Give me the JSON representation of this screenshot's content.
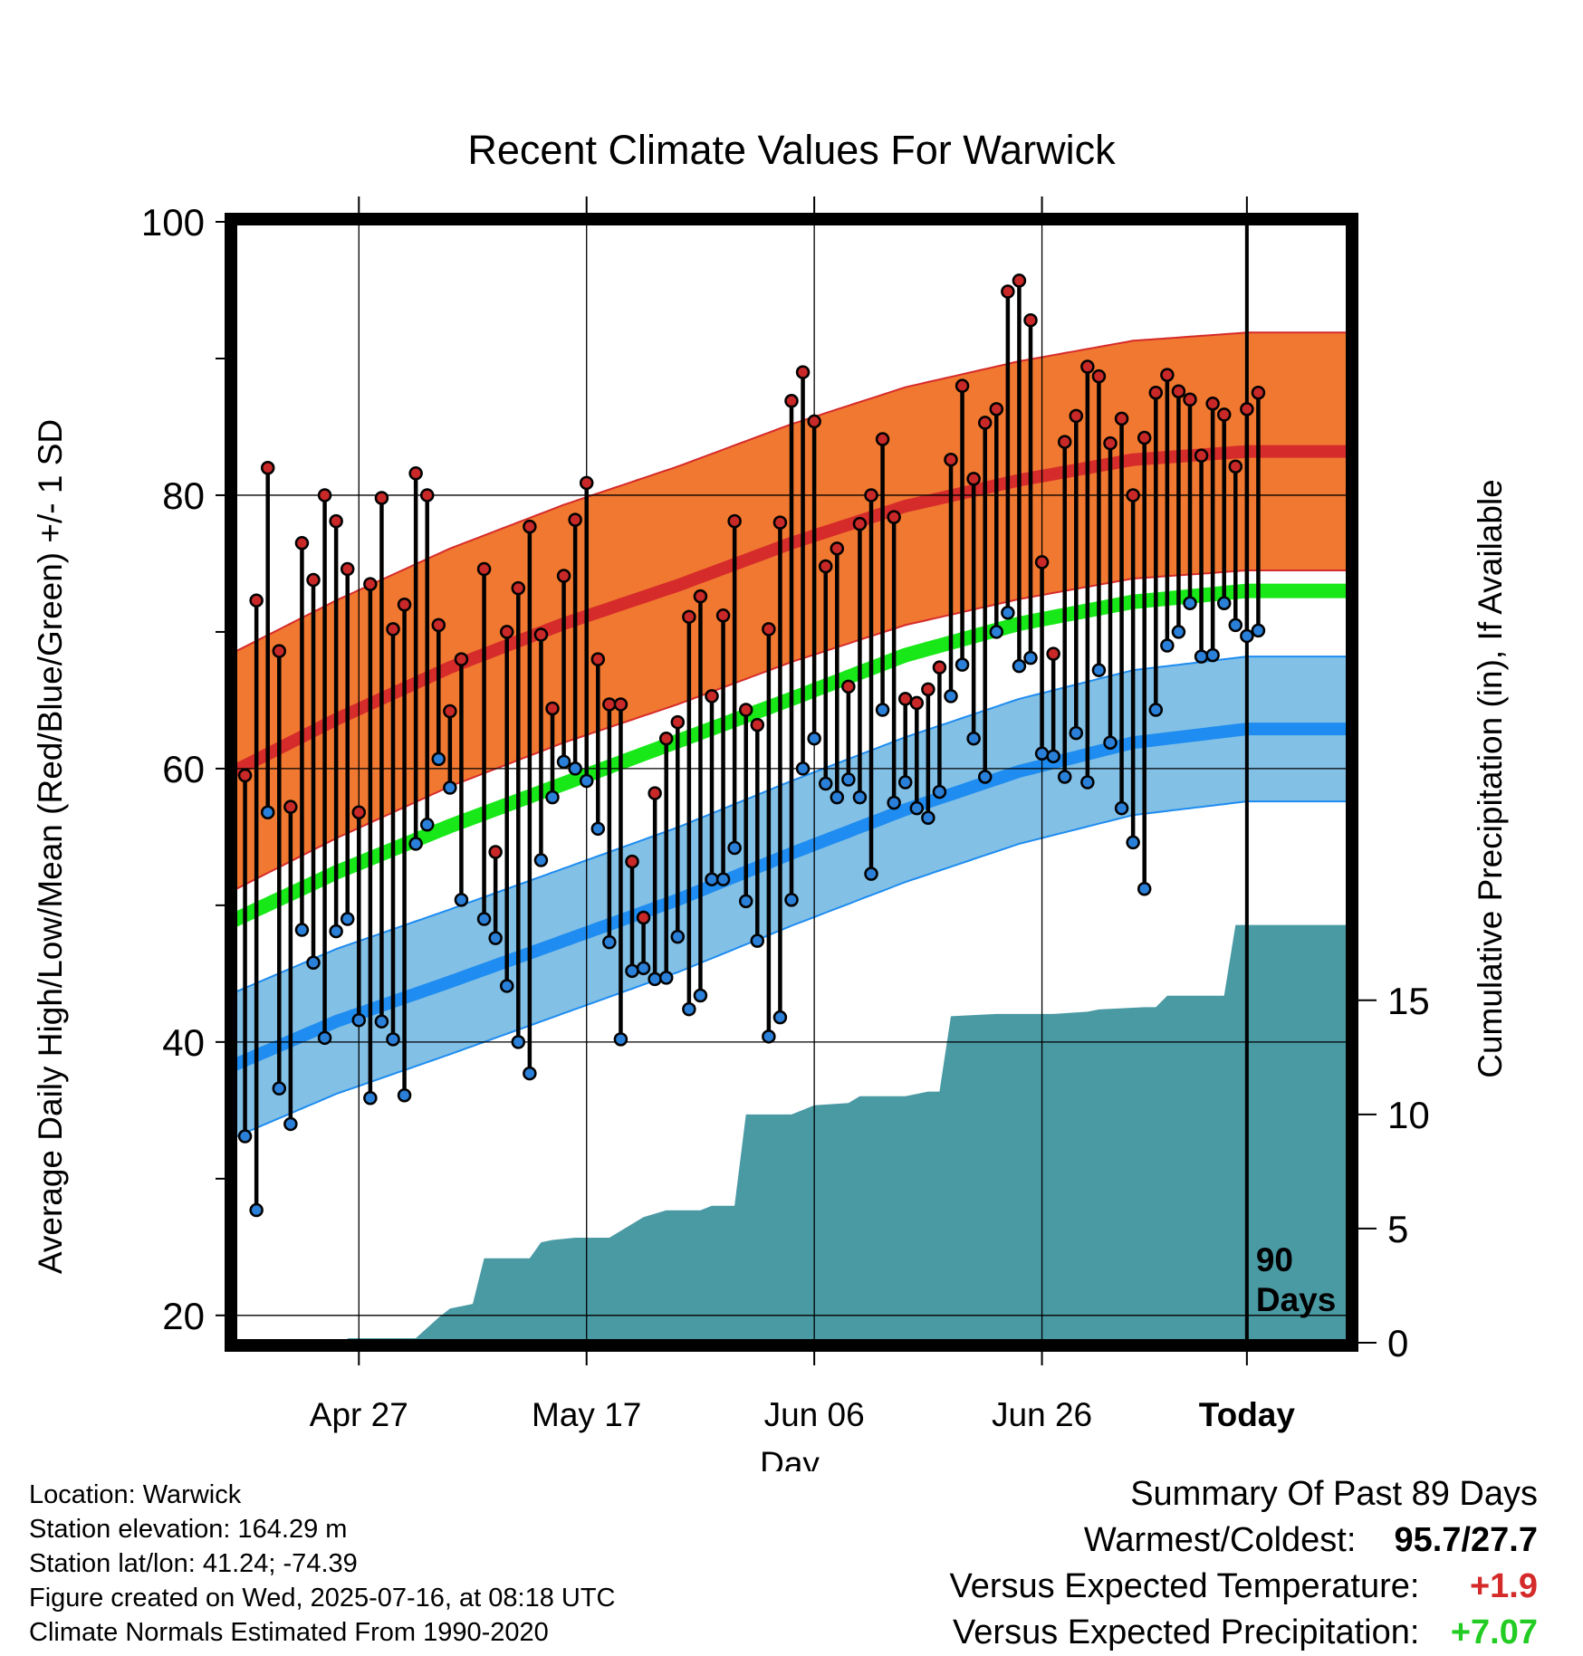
{
  "colors": {
    "high_band": "#f07830",
    "high_mean": "#d62b2b",
    "low_band": "#82c0e6",
    "low_mean": "#1e8cf0",
    "mean": "#18e818",
    "precip": "#4a9aa4",
    "high_dot": "#c82828",
    "low_dot": "#2a80d8",
    "warm_value": "#d42a2a",
    "precip_value": "#22cc22"
  },
  "chart_data": {
    "type": "line",
    "title": "Recent Climate Values For Warwick",
    "xlabel": "Day",
    "ylabel": "Average Daily High/Low/Mean (Red/Blue/Green) +/- 1 SD",
    "y2label": "Cumulative Precipitation (in), If Available",
    "ylim": [
      18,
      100
    ],
    "y_ticks": [
      20,
      40,
      60,
      80,
      100
    ],
    "y2lim": [
      0,
      49.1
    ],
    "y2_ticks": [
      0,
      5,
      10,
      15
    ],
    "x_day_range": [
      -89,
      9
    ],
    "x_ticks": [
      {
        "day": -78,
        "label": "Apr 27"
      },
      {
        "day": -58,
        "label": "May 17"
      },
      {
        "day": -38,
        "label": "Jun 06"
      },
      {
        "day": -18,
        "label": "Jun 26"
      },
      {
        "day": 0,
        "label": "Today"
      }
    ],
    "period_label": "90\nDays",
    "grid": true,
    "normal_high_mean": [
      [
        -89,
        59.8
      ],
      [
        -80,
        63.6
      ],
      [
        -70,
        67.4
      ],
      [
        -60,
        70.6
      ],
      [
        -50,
        73.4
      ],
      [
        -40,
        76.5
      ],
      [
        -30,
        79.2
      ],
      [
        -20,
        81.1
      ],
      [
        -10,
        82.6
      ],
      [
        0,
        83.2
      ],
      [
        9,
        83.2
      ]
    ],
    "normal_high_sd": 8.7,
    "normal_low_mean": [
      [
        -89,
        38.3
      ],
      [
        -80,
        41.5
      ],
      [
        -70,
        44.4
      ],
      [
        -60,
        47.4
      ],
      [
        -50,
        50.4
      ],
      [
        -40,
        53.8
      ],
      [
        -30,
        57.0
      ],
      [
        -20,
        59.8
      ],
      [
        -10,
        61.9
      ],
      [
        0,
        62.9
      ],
      [
        9,
        62.9
      ]
    ],
    "normal_low_sd": 5.3,
    "normal_mean": [
      [
        -89,
        48.9
      ],
      [
        -80,
        52.4
      ],
      [
        -70,
        55.8
      ],
      [
        -60,
        58.9
      ],
      [
        -50,
        62.0
      ],
      [
        -40,
        65.1
      ],
      [
        -30,
        68.3
      ],
      [
        -20,
        70.6
      ],
      [
        -10,
        72.2
      ],
      [
        0,
        73.0
      ],
      [
        9,
        73.0
      ]
    ],
    "daily": [
      {
        "day": -88,
        "high": 59.5,
        "low": 33.1
      },
      {
        "day": -87,
        "high": 72.3,
        "low": 27.7
      },
      {
        "day": -86,
        "high": 82.0,
        "low": 56.8
      },
      {
        "day": -85,
        "high": 68.6,
        "low": 36.6
      },
      {
        "day": -84,
        "high": 57.2,
        "low": 34.0
      },
      {
        "day": -83,
        "high": 76.5,
        "low": 48.2
      },
      {
        "day": -82,
        "high": 73.8,
        "low": 45.8
      },
      {
        "day": -81,
        "high": 80.0,
        "low": 40.3
      },
      {
        "day": -80,
        "high": 78.1,
        "low": 48.1
      },
      {
        "day": -79,
        "high": 74.6,
        "low": 49.0
      },
      {
        "day": -78,
        "high": 56.8,
        "low": 41.6
      },
      {
        "day": -77,
        "high": 73.5,
        "low": 35.9
      },
      {
        "day": -76,
        "high": 79.8,
        "low": 41.5
      },
      {
        "day": -75,
        "high": 70.2,
        "low": 40.2
      },
      {
        "day": -74,
        "high": 72.0,
        "low": 36.1
      },
      {
        "day": -73,
        "high": 81.6,
        "low": 54.5
      },
      {
        "day": -72,
        "high": 80.0,
        "low": 55.9
      },
      {
        "day": -71,
        "high": 70.5,
        "low": 60.7
      },
      {
        "day": -70,
        "high": 64.2,
        "low": 58.6
      },
      {
        "day": -69,
        "high": 68.0,
        "low": 50.4
      },
      {
        "day": -67,
        "high": 74.6,
        "low": 49.0
      },
      {
        "day": -66,
        "high": 53.9,
        "low": 47.6
      },
      {
        "day": -65,
        "high": 70.0,
        "low": 44.1
      },
      {
        "day": -64,
        "high": 73.2,
        "low": 40.0
      },
      {
        "day": -63,
        "high": 77.7,
        "low": 37.7
      },
      {
        "day": -62,
        "high": 69.8,
        "low": 53.3
      },
      {
        "day": -61,
        "high": 64.4,
        "low": 57.9
      },
      {
        "day": -60,
        "high": 74.1,
        "low": 60.5
      },
      {
        "day": -59,
        "high": 78.2,
        "low": 60.0
      },
      {
        "day": -58,
        "high": 80.9,
        "low": 59.1
      },
      {
        "day": -57,
        "high": 68.0,
        "low": 55.6
      },
      {
        "day": -56,
        "high": 64.7,
        "low": 47.3
      },
      {
        "day": -55,
        "high": 64.7,
        "low": 40.2
      },
      {
        "day": -54,
        "high": 53.2,
        "low": 45.2
      },
      {
        "day": -53,
        "high": 49.1,
        "low": 45.4
      },
      {
        "day": -52,
        "high": 58.2,
        "low": 44.6
      },
      {
        "day": -51,
        "high": 62.2,
        "low": 44.7
      },
      {
        "day": -50,
        "high": 63.4,
        "low": 47.7
      },
      {
        "day": -49,
        "high": 71.1,
        "low": 42.4
      },
      {
        "day": -48,
        "high": 72.6,
        "low": 43.4
      },
      {
        "day": -47,
        "high": 65.3,
        "low": 51.9
      },
      {
        "day": -46,
        "high": 71.2,
        "low": 51.9
      },
      {
        "day": -45,
        "high": 78.1,
        "low": 54.2
      },
      {
        "day": -44,
        "high": 64.3,
        "low": 50.3
      },
      {
        "day": -43,
        "high": 63.2,
        "low": 47.4
      },
      {
        "day": -42,
        "high": 70.2,
        "low": 40.4
      },
      {
        "day": -41,
        "high": 78.0,
        "low": 41.8
      },
      {
        "day": -40,
        "high": 86.9,
        "low": 50.4
      },
      {
        "day": -39,
        "high": 89.0,
        "low": 60.0
      },
      {
        "day": -38,
        "high": 85.4,
        "low": 62.2
      },
      {
        "day": -37,
        "high": 74.8,
        "low": 58.9
      },
      {
        "day": -36,
        "high": 76.1,
        "low": 57.9
      },
      {
        "day": -35,
        "high": 66.0,
        "low": 59.2
      },
      {
        "day": -34,
        "high": 77.9,
        "low": 57.9
      },
      {
        "day": -33,
        "high": 80.0,
        "low": 52.3
      },
      {
        "day": -32,
        "high": 84.1,
        "low": 64.3
      },
      {
        "day": -31,
        "high": 78.4,
        "low": 57.5
      },
      {
        "day": -30,
        "high": 65.1,
        "low": 59.0
      },
      {
        "day": -29,
        "high": 64.8,
        "low": 57.1
      },
      {
        "day": -28,
        "high": 65.8,
        "low": 56.4
      },
      {
        "day": -27,
        "high": 67.4,
        "low": 58.3
      },
      {
        "day": -26,
        "high": 82.6,
        "low": 65.3
      },
      {
        "day": -25,
        "high": 88.0,
        "low": 67.6
      },
      {
        "day": -24,
        "high": 81.2,
        "low": 62.2
      },
      {
        "day": -23,
        "high": 85.3,
        "low": 59.4
      },
      {
        "day": -22,
        "high": 86.3,
        "low": 70.0
      },
      {
        "day": -21,
        "high": 94.9,
        "low": 71.4
      },
      {
        "day": -20,
        "high": 95.7,
        "low": 67.5
      },
      {
        "day": -19,
        "high": 92.8,
        "low": 68.1
      },
      {
        "day": -18,
        "high": 75.1,
        "low": 61.1
      },
      {
        "day": -17,
        "high": 68.4,
        "low": 60.9
      },
      {
        "day": -16,
        "high": 83.9,
        "low": 59.4
      },
      {
        "day": -15,
        "high": 85.8,
        "low": 62.6
      },
      {
        "day": -14,
        "high": 89.4,
        "low": 59.0
      },
      {
        "day": -13,
        "high": 88.7,
        "low": 67.2
      },
      {
        "day": -12,
        "high": 83.8,
        "low": 61.9
      },
      {
        "day": -11,
        "high": 85.6,
        "low": 57.1
      },
      {
        "day": -10,
        "high": 80.0,
        "low": 54.6
      },
      {
        "day": -9,
        "high": 84.2,
        "low": 51.2
      },
      {
        "day": -8,
        "high": 87.5,
        "low": 64.3
      },
      {
        "day": -7,
        "high": 88.8,
        "low": 69.0
      },
      {
        "day": -6,
        "high": 87.6,
        "low": 70.0
      },
      {
        "day": -5,
        "high": 87.0,
        "low": 72.1
      },
      {
        "day": -4,
        "high": 82.9,
        "low": 68.2
      },
      {
        "day": -3,
        "high": 86.7,
        "low": 68.3
      },
      {
        "day": -2,
        "high": 85.9,
        "low": 72.1
      },
      {
        "day": -1,
        "high": 82.1,
        "low": 70.5
      },
      {
        "day": 0,
        "high": 86.3,
        "low": 69.7
      },
      {
        "day": 1,
        "high": 87.5,
        "low": 70.1
      }
    ],
    "cumulative_precip": [
      [
        -89,
        0
      ],
      [
        -79,
        0
      ],
      [
        -79,
        0.2
      ],
      [
        -73,
        0.2
      ],
      [
        -71,
        1.1
      ],
      [
        -70,
        1.5
      ],
      [
        -68,
        1.7
      ],
      [
        -67,
        3.7
      ],
      [
        -63,
        3.7
      ],
      [
        -62,
        4.4
      ],
      [
        -61,
        4.5
      ],
      [
        -59,
        4.6
      ],
      [
        -56,
        4.6
      ],
      [
        -53,
        5.5
      ],
      [
        -51,
        5.8
      ],
      [
        -48,
        5.8
      ],
      [
        -47,
        6.0
      ],
      [
        -45,
        6.0
      ],
      [
        -44,
        10.0
      ],
      [
        -40,
        10.0
      ],
      [
        -38,
        10.4
      ],
      [
        -35,
        10.5
      ],
      [
        -34,
        10.8
      ],
      [
        -30,
        10.8
      ],
      [
        -28,
        11.0
      ],
      [
        -27,
        11.0
      ],
      [
        -26,
        14.3
      ],
      [
        -22,
        14.4
      ],
      [
        -17,
        14.4
      ],
      [
        -14,
        14.5
      ],
      [
        -13,
        14.6
      ],
      [
        -9,
        14.7
      ],
      [
        -8,
        14.7
      ],
      [
        -7,
        15.2
      ],
      [
        -2,
        15.2
      ],
      [
        -1,
        18.3
      ],
      [
        9,
        18.3
      ]
    ]
  },
  "summary": {
    "heading": "Summary Of Past 89 Days",
    "warmest_coldest_label": "Warmest/Coldest:",
    "warmest_coldest_value": "95.7/27.7",
    "temp_label": "Versus Expected Temperature:",
    "temp_value": "+1.9",
    "precip_label": "Versus Expected Precipitation:",
    "precip_value": "+7.07"
  },
  "station": {
    "location": "Location: Warwick",
    "elevation": "Station elevation: 164.29 m",
    "latlon": "Station lat/lon: 41.24; -74.39",
    "created": "Figure created on Wed, 2025-07-16, at 08:18 UTC",
    "normals": "Climate Normals Estimated From 1990-2020"
  }
}
